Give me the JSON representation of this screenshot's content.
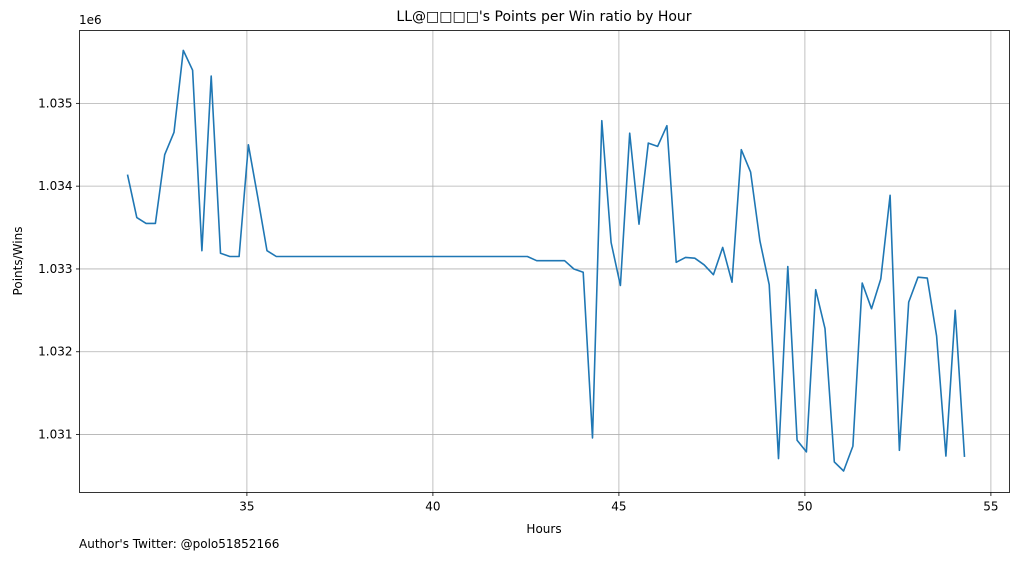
{
  "chart_data": {
    "type": "line",
    "title": "LL@□□□□'s Points per Win ratio by Hour",
    "xlabel": "Hours",
    "ylabel": "Points/Wins",
    "y_offset_text": "1e6",
    "xlim": [
      30.5,
      55.5
    ],
    "ylim": [
      1030300,
      1035880
    ],
    "x_ticks": [
      35,
      40,
      45,
      50,
      55
    ],
    "y_ticks": [
      1031000,
      1032000,
      1033000,
      1034000,
      1035000
    ],
    "y_tick_labels": [
      "1.031",
      "1.032",
      "1.033",
      "1.034",
      "1.035"
    ],
    "grid": true,
    "color": "#1f77b4",
    "series": [
      {
        "x": [
          31.79,
          32.04,
          32.29,
          32.54,
          32.79,
          33.04,
          33.29,
          33.54,
          33.79,
          34.04,
          34.29,
          34.54,
          34.79,
          35.04,
          35.29,
          35.54,
          35.79,
          36.04,
          42.54,
          42.79,
          43.04,
          43.54,
          43.79,
          44.04,
          44.29,
          44.54,
          44.79,
          45.04,
          45.29,
          45.54,
          45.79,
          46.04,
          46.29,
          46.54,
          46.79,
          47.04,
          47.29,
          47.54,
          47.79,
          48.04,
          48.29,
          48.54,
          48.79,
          49.04,
          49.29,
          49.54,
          49.79,
          50.04,
          50.29,
          50.54,
          50.79,
          51.04,
          51.29,
          51.54,
          51.79,
          52.04,
          52.29,
          52.54,
          52.79,
          53.04,
          53.29,
          53.54,
          53.79,
          54.04,
          54.29
        ],
        "y": [
          1034140,
          1033620,
          1033550,
          1033550,
          1034380,
          1034650,
          1035640,
          1035400,
          1033220,
          1035330,
          1033190,
          1033150,
          1033150,
          1034500,
          1033870,
          1033220,
          1033150,
          1033150,
          1033150,
          1033100,
          1033100,
          1033100,
          1033000,
          1032960,
          1030960,
          1034790,
          1033320,
          1032800,
          1034640,
          1033540,
          1034520,
          1034480,
          1034730,
          1033080,
          1033140,
          1033130,
          1033050,
          1032930,
          1033260,
          1032840,
          1034440,
          1034170,
          1033340,
          1032810,
          1030710,
          1033030,
          1030930,
          1030790,
          1032750,
          1032280,
          1030670,
          1030560,
          1030860,
          1032830,
          1032520,
          1032880,
          1033890,
          1030810,
          1032600,
          1032900,
          1032890,
          1032190,
          1030740,
          1032500,
          1030730
        ]
      }
    ]
  },
  "footer_text": "Author's Twitter: @polo51852166"
}
